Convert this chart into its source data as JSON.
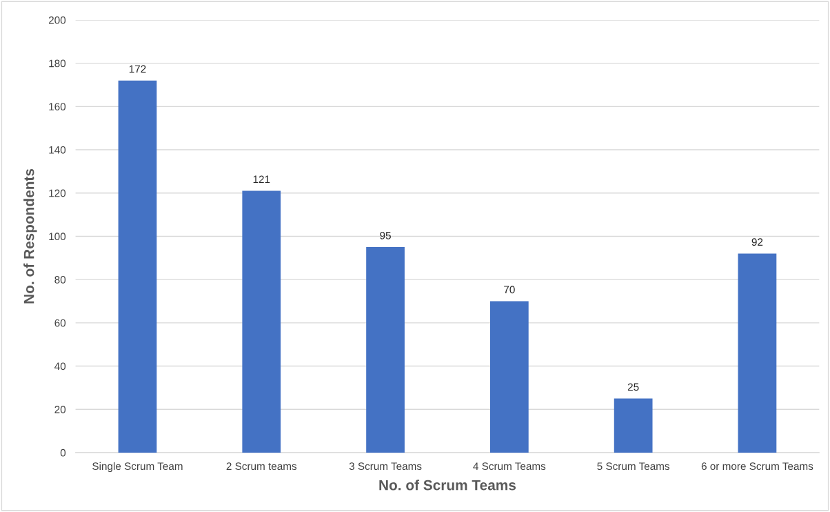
{
  "chart_data": {
    "type": "bar",
    "xlabel": "No. of Scrum Teams",
    "ylabel": "No. of Respondents",
    "categories": [
      "Single Scrum Team",
      "2 Scrum teams",
      "3 Scrum Teams",
      "4 Scrum Teams",
      "5 Scrum Teams",
      "6 or more Scrum Teams"
    ],
    "values": [
      172,
      121,
      95,
      70,
      25,
      92
    ],
    "color": "#4472c4",
    "ylim": [
      0,
      200
    ],
    "yticks": [
      0,
      20,
      40,
      60,
      80,
      100,
      120,
      140,
      160,
      180,
      200
    ],
    "grid": "y",
    "data_labels": true
  }
}
